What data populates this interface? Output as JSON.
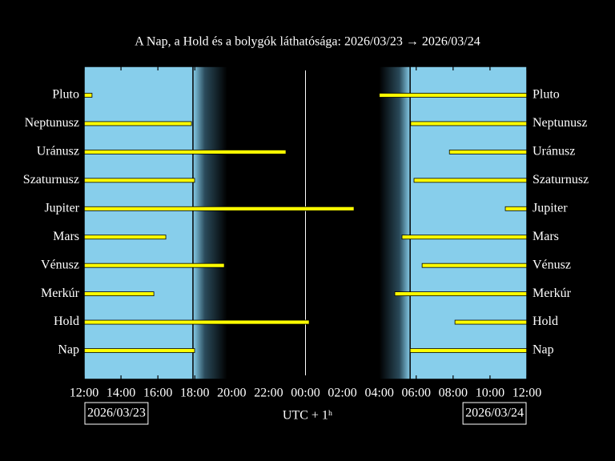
{
  "chart_data": {
    "type": "timeline",
    "title": "A Nap, a Hold és a bolygók láthatósága: 2026/03/23 → 2026/03/24",
    "xlabel": "UTC + 1ʰ",
    "date_labels": [
      "2026/03/23",
      "2026/03/24"
    ],
    "categories": [
      "Pluto",
      "Neptunusz",
      "Uránusz",
      "Szaturnusz",
      "Jupiter",
      "Mars",
      "Vénusz",
      "Merkúr",
      "Hold",
      "Nap"
    ],
    "intervals": [
      [
        [
          0,
          0.43
        ],
        [
          16.0,
          24
        ]
      ],
      [
        [
          0,
          5.82
        ],
        [
          17.7,
          24
        ]
      ],
      [
        [
          0,
          10.94
        ],
        [
          19.8,
          24
        ]
      ],
      [
        [
          0,
          5.99
        ],
        [
          17.88,
          24
        ]
      ],
      [
        [
          0,
          14.63
        ],
        [
          22.83,
          24
        ]
      ],
      [
        [
          0,
          4.43
        ],
        [
          17.23,
          24
        ]
      ],
      [
        [
          0,
          7.6
        ],
        [
          18.32,
          24
        ]
      ],
      [
        [
          0,
          3.78
        ],
        [
          16.84,
          24
        ]
      ],
      [
        [
          0,
          12.2
        ],
        [
          20.1,
          24
        ]
      ],
      [
        [
          0,
          5.99
        ],
        [
          17.67,
          24
        ]
      ]
    ],
    "color": "#ffff00",
    "daylight": [
      [
        0,
        5.9
      ],
      [
        17.67,
        24
      ]
    ],
    "twilight": [
      [
        5.9,
        7.75
      ],
      [
        16.0,
        17.67
      ]
    ],
    "midnight": 12,
    "xlim": [
      0,
      24
    ],
    "xticks": [
      {
        "value": 0,
        "label": "12:00"
      },
      {
        "value": 2,
        "label": "14:00"
      },
      {
        "value": 4,
        "label": "16:00"
      },
      {
        "value": 6,
        "label": "18:00"
      },
      {
        "value": 8,
        "label": "20:00"
      },
      {
        "value": 10,
        "label": "22:00"
      },
      {
        "value": 12,
        "label": "00:00"
      },
      {
        "value": 14,
        "label": "02:00"
      },
      {
        "value": 16,
        "label": "04:00"
      },
      {
        "value": 18,
        "label": "06:00"
      },
      {
        "value": 20,
        "label": "08:00"
      },
      {
        "value": 22,
        "label": "10:00"
      },
      {
        "value": 24,
        "label": "12:00"
      }
    ]
  }
}
